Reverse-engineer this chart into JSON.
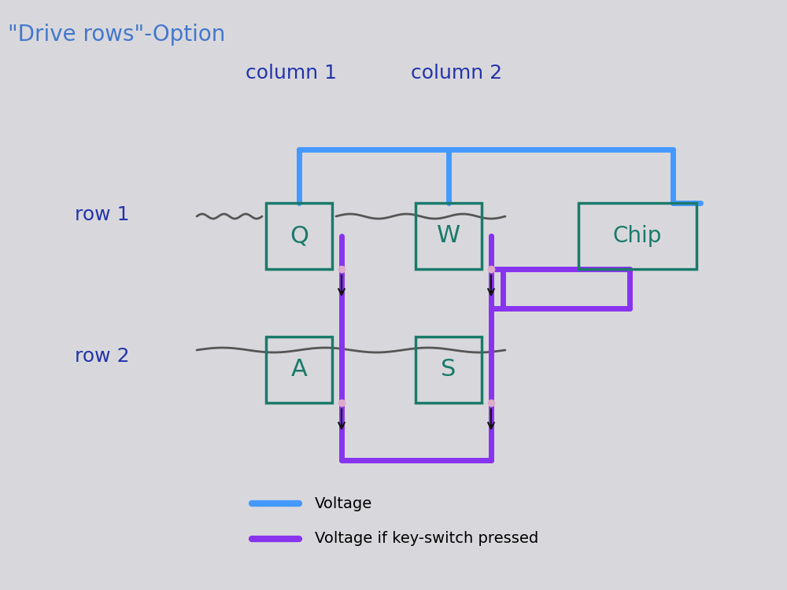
{
  "title": "\"Drive rows\"-Option",
  "title_color": "#4477CC",
  "title_fontsize": 20,
  "bg_color": "#D8D8DC",
  "col1_label": "column 1",
  "col2_label": "column 2",
  "row1_label": "row 1",
  "row2_label": "row 2",
  "label_color": "#2233AA",
  "label_fontsize": 18,
  "switch_color": "#1A7A6A",
  "chip_color": "#1A7A6A",
  "blue_color": "#4499FF",
  "purple_color": "#8833EE",
  "wire_color": "#555555",
  "arrow_color": "#111111",
  "legend_text1": "Voltage",
  "legend_text2": "Voltage if key-switch pressed"
}
